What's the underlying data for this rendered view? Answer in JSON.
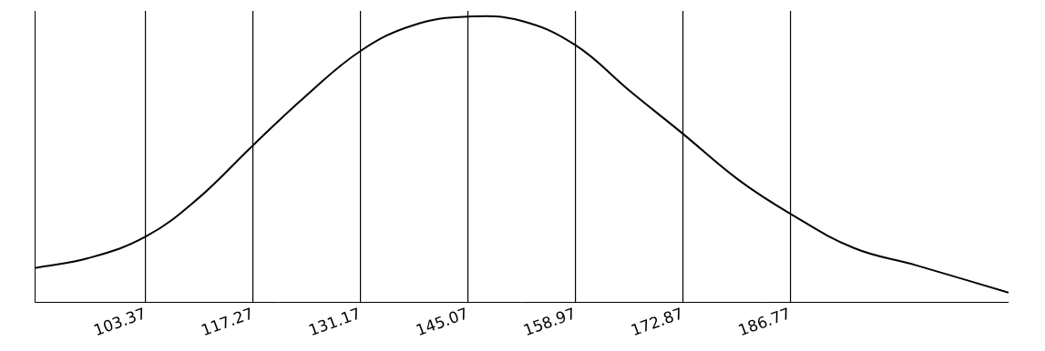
{
  "chart_data": {
    "type": "line",
    "x": [
      89,
      96,
      103.37,
      110,
      117.27,
      124,
      131.17,
      138,
      145.07,
      152,
      158.97,
      166,
      172.87,
      180,
      186.77,
      195,
      203,
      215
    ],
    "values": [
      0.12,
      0.155,
      0.23,
      0.36,
      0.55,
      0.72,
      0.88,
      0.97,
      1.0,
      0.985,
      0.9,
      0.74,
      0.59,
      0.43,
      0.31,
      0.19,
      0.13,
      0.034
    ],
    "color": "#000000",
    "xlim": [
      89,
      215
    ],
    "xticks": [
      103.37,
      117.27,
      131.17,
      145.07,
      158.97,
      172.87,
      186.77
    ],
    "ylim": [
      0,
      1.02
    ],
    "grid": true,
    "tick_labels": "x"
  }
}
